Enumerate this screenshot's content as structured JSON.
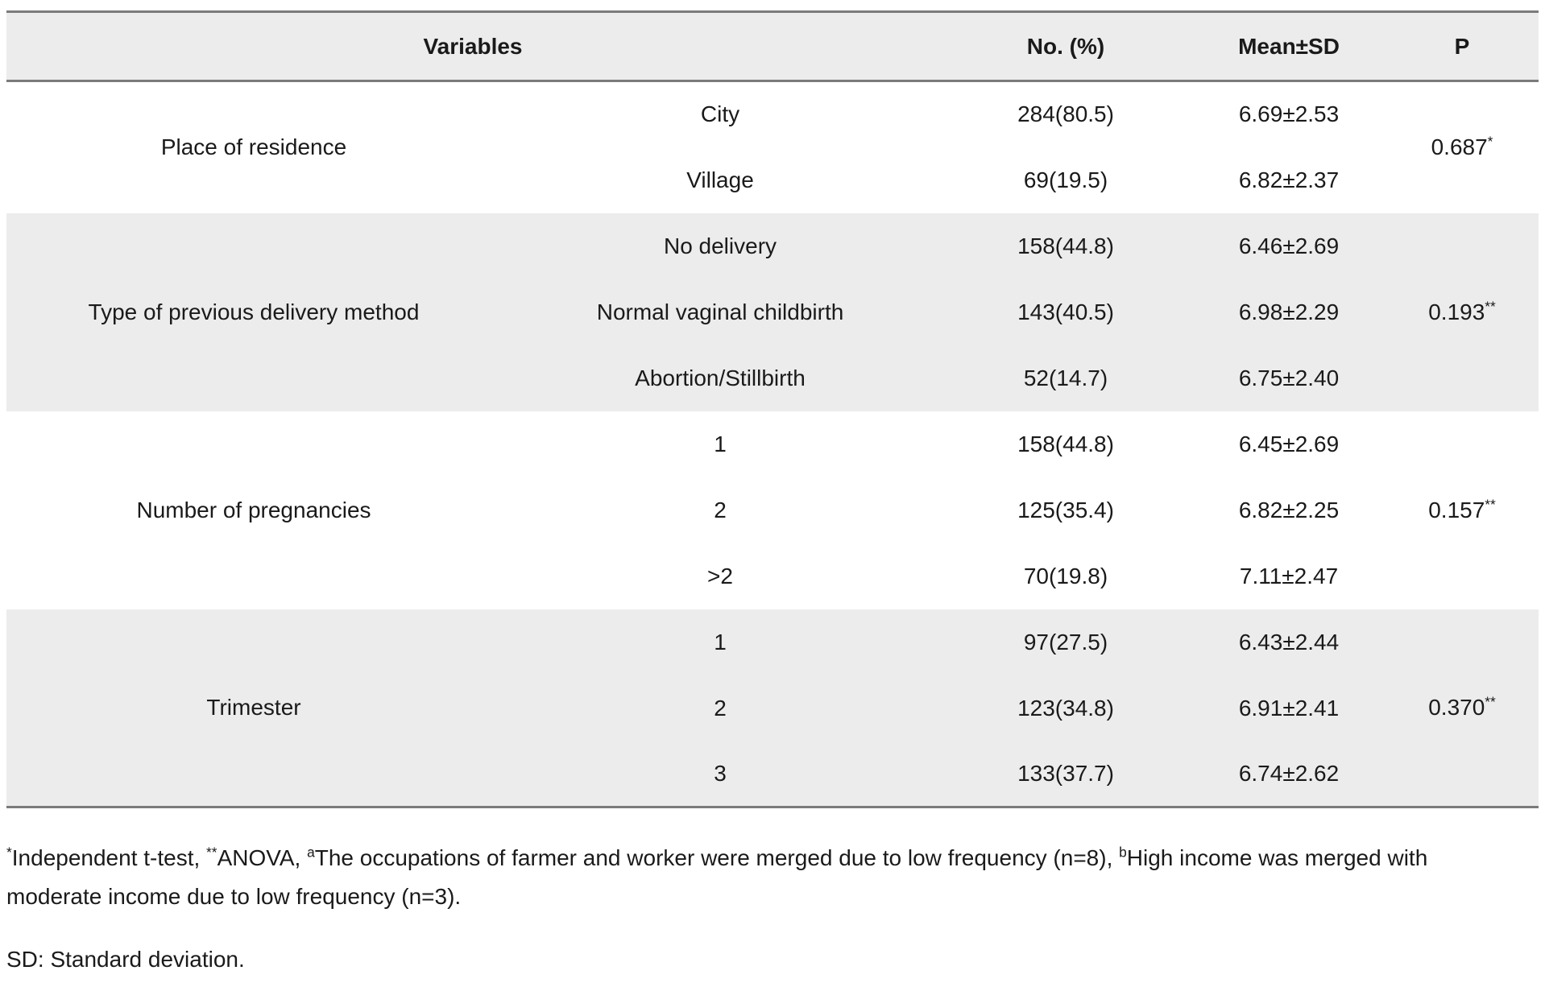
{
  "table": {
    "headers": {
      "variables": "Variables",
      "no_pct": "No. (%)",
      "mean_sd": "Mean±SD",
      "p": "P"
    },
    "sections": [
      {
        "variable": "Place of residence",
        "p_value": "0.687",
        "p_sup": "*",
        "rows": [
          {
            "category": "City",
            "no_pct": "284(80.5)",
            "mean_sd": "6.69±2.53"
          },
          {
            "category": "Village",
            "no_pct": "69(19.5)",
            "mean_sd": "6.82±2.37"
          }
        ]
      },
      {
        "variable": "Type of previous delivery method",
        "p_value": "0.193",
        "p_sup": "**",
        "rows": [
          {
            "category": "No delivery",
            "no_pct": "158(44.8)",
            "mean_sd": "6.46±2.69"
          },
          {
            "category": "Normal vaginal childbirth",
            "no_pct": "143(40.5)",
            "mean_sd": "6.98±2.29"
          },
          {
            "category": "Abortion/Stillbirth",
            "no_pct": "52(14.7)",
            "mean_sd": "6.75±2.40"
          }
        ]
      },
      {
        "variable": "Number of pregnancies",
        "p_value": "0.157",
        "p_sup": "**",
        "rows": [
          {
            "category": "1",
            "no_pct": "158(44.8)",
            "mean_sd": "6.45±2.69"
          },
          {
            "category": "2",
            "no_pct": "125(35.4)",
            "mean_sd": "6.82±2.25"
          },
          {
            "category": ">2",
            "no_pct": "70(19.8)",
            "mean_sd": "7.11±2.47"
          }
        ]
      },
      {
        "variable": "Trimester",
        "p_value": "0.370",
        "p_sup": "**",
        "rows": [
          {
            "category": "1",
            "no_pct": "97(27.5)",
            "mean_sd": "6.43±2.44"
          },
          {
            "category": "2",
            "no_pct": "123(34.8)",
            "mean_sd": "6.91±2.41"
          },
          {
            "category": "3",
            "no_pct": "133(37.7)",
            "mean_sd": "6.74±2.62"
          }
        ]
      }
    ]
  },
  "footnotes": {
    "line1_segments": [
      {
        "sup": "*"
      },
      {
        "text": "Independent t-test, "
      },
      {
        "sup": "**"
      },
      {
        "text": "ANOVA, "
      },
      {
        "sup": "a"
      },
      {
        "text": "The occupations of farmer and worker were merged due to low frequency (n=8), "
      },
      {
        "sup": "b"
      },
      {
        "text": "High income was merged with moderate income due to low frequency (n=3)."
      }
    ],
    "sd_note": "SD: Standard deviation."
  },
  "colors": {
    "band_bg": "#ececec",
    "border": "#7b7b7b",
    "text": "#1a1a1a"
  }
}
